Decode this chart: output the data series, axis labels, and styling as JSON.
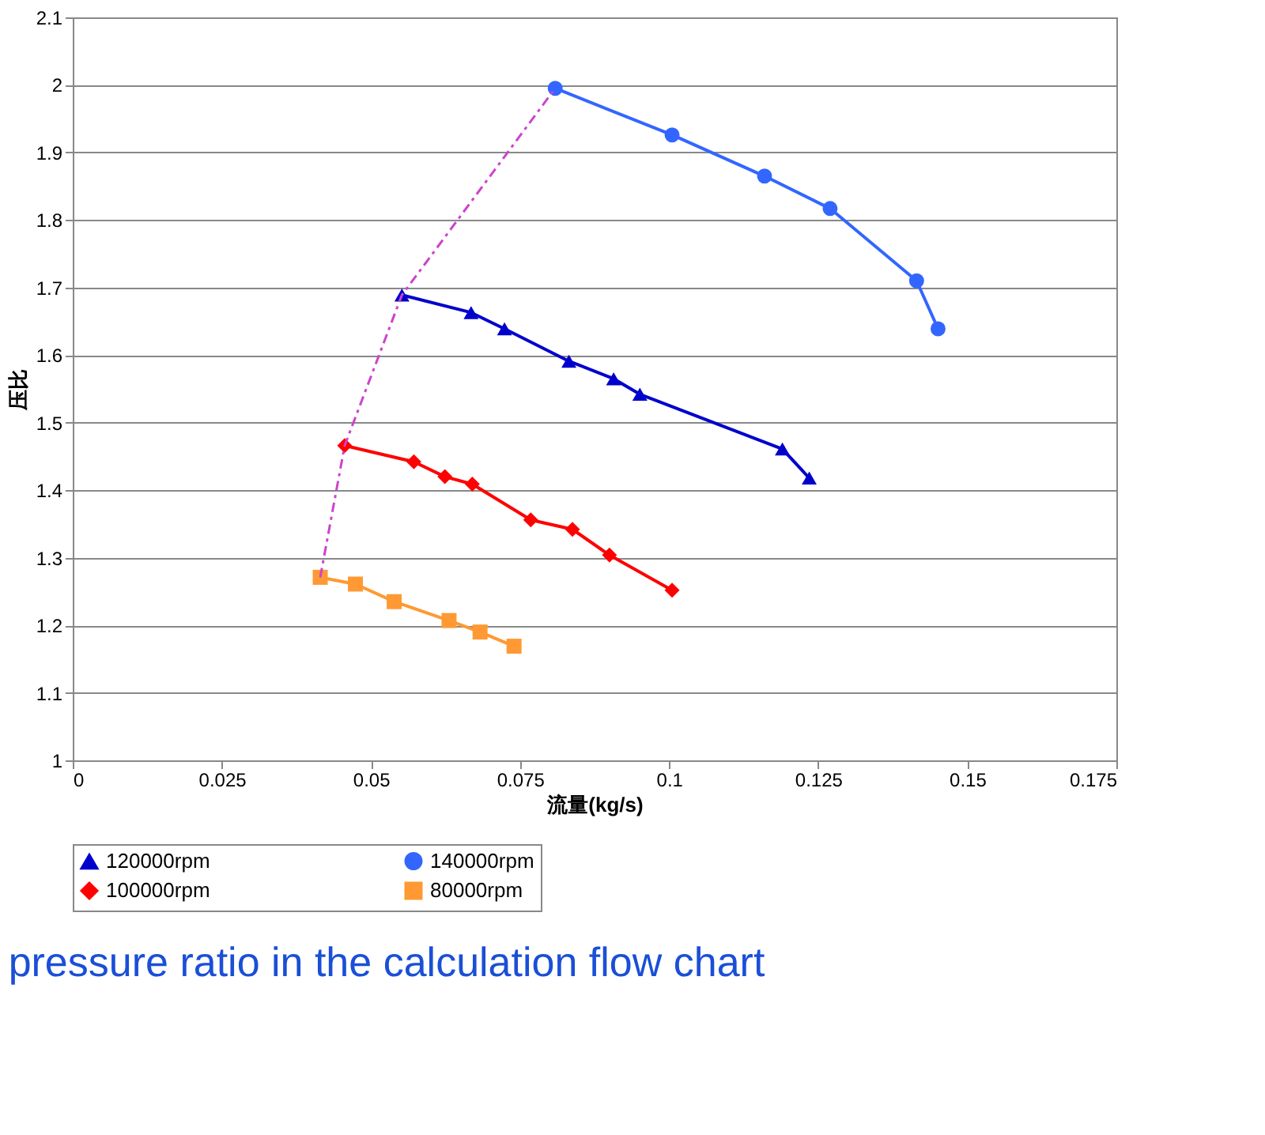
{
  "chart_data": {
    "type": "line",
    "xlabel": "流量(kg/s)",
    "ylabel": "压比",
    "xlim": [
      0,
      0.175
    ],
    "xticks": [
      0,
      0.025,
      0.05,
      0.075,
      0.1,
      0.125,
      0.15,
      0.175
    ],
    "ylim": [
      1,
      2.1
    ],
    "yticks": [
      1,
      1.1,
      1.2,
      1.3,
      1.4,
      1.5,
      1.6,
      1.7,
      1.8,
      1.9,
      2,
      2.1
    ],
    "grid": "y",
    "legend": "bottom",
    "series": [
      {
        "name": "120000rpm",
        "color": "#0000cc",
        "marker": "triangle",
        "x": [
          0.0552,
          0.0668,
          0.0724,
          0.0832,
          0.0907,
          0.0951,
          0.119,
          0.1235
        ],
        "values": [
          1.689,
          1.663,
          1.639,
          1.591,
          1.565,
          1.542,
          1.461,
          1.418
        ]
      },
      {
        "name": "140000rpm",
        "color": "#3366ff",
        "marker": "circle",
        "x": [
          0.0809,
          0.1005,
          0.116,
          0.127,
          0.1415,
          0.1451
        ],
        "values": [
          1.995,
          1.926,
          1.865,
          1.817,
          1.71,
          1.639
        ]
      },
      {
        "name": "100000rpm",
        "color": "#ff0000",
        "marker": "diamond",
        "x": [
          0.0456,
          0.0572,
          0.0624,
          0.067,
          0.0768,
          0.0838,
          0.09,
          0.1005
        ],
        "values": [
          1.466,
          1.442,
          1.42,
          1.409,
          1.356,
          1.342,
          1.304,
          1.252
        ]
      },
      {
        "name": "80000rpm",
        "color": "#ff9933",
        "marker": "square",
        "x": [
          0.0415,
          0.0474,
          0.0539,
          0.0631,
          0.0683,
          0.074
        ],
        "values": [
          1.271,
          1.261,
          1.235,
          1.207,
          1.19,
          1.169
        ]
      },
      {
        "color": "#cc44cc",
        "marker": "none",
        "line_style": "dashed",
        "x": [
          0.0415,
          0.0456,
          0.0552,
          0.0809
        ],
        "values": [
          1.271,
          1.466,
          1.689,
          1.995
        ]
      }
    ],
    "annotations": [
      "pressure ratio in the calculation flow chart"
    ]
  }
}
